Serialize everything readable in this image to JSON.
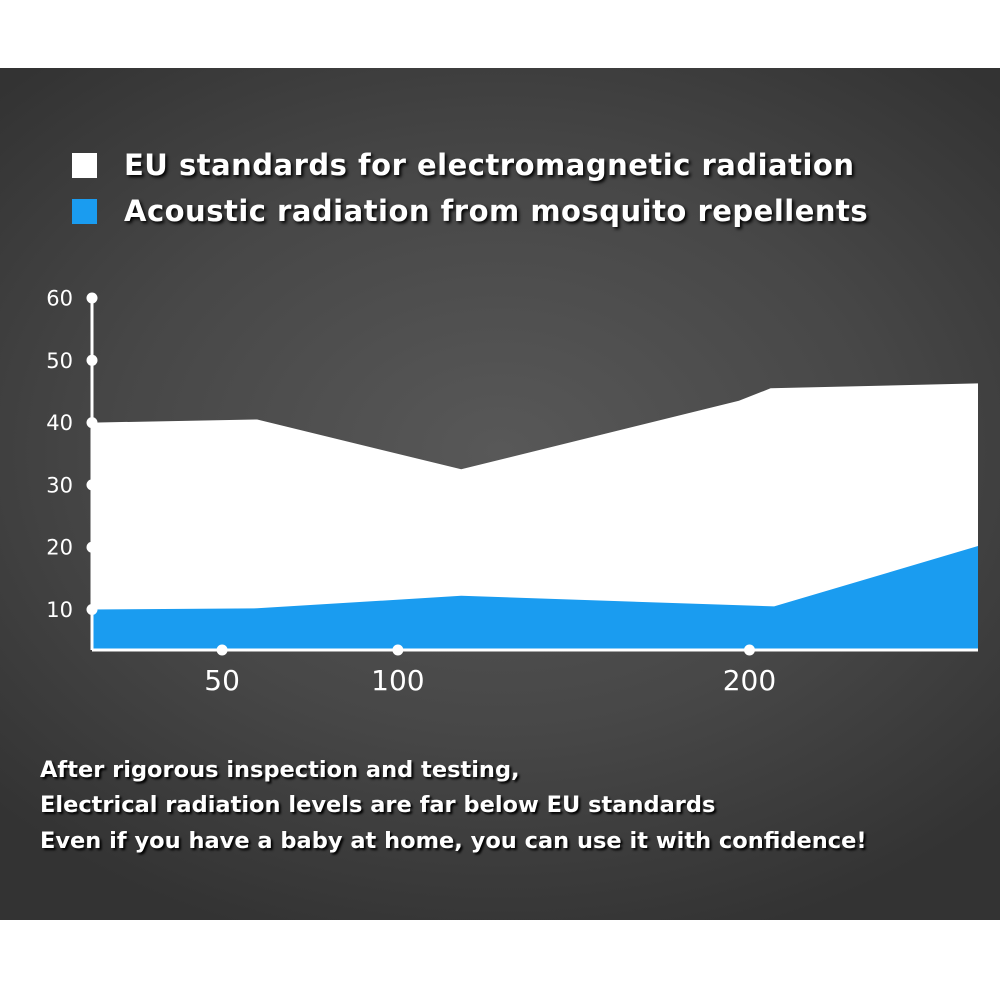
{
  "legend": [
    {
      "label": "EU standards for electromagnetic radiation",
      "color": "#ffffff"
    },
    {
      "label": "Acoustic radiation from mosquito repellents",
      "color": "#1a9cf0"
    }
  ],
  "captions": [
    "After rigorous inspection and testing,",
    "Electrical radiation levels are far below EU standards",
    "Even if you have a baby at home, you can use it with confidence!"
  ],
  "chart_data": {
    "type": "area",
    "title": "",
    "xlabel": "",
    "ylabel": "",
    "x_ticks": [
      50,
      100,
      200
    ],
    "y_ticks": [
      10,
      20,
      30,
      40,
      50,
      60
    ],
    "ylim": [
      3.5,
      60
    ],
    "xlim": [
      13,
      265
    ],
    "grid": false,
    "legend_position": "top-left",
    "series": [
      {
        "name": "EU standards for electromagnetic radiation",
        "color": "#ffffff",
        "x": [
          13,
          60,
          118,
          197,
          206,
          265
        ],
        "values": [
          40,
          40.5,
          32.5,
          43.5,
          45.5,
          46.3
        ]
      },
      {
        "name": "Acoustic radiation from mosquito repellents",
        "color": "#1a9cf0",
        "x": [
          13,
          60,
          118,
          207,
          265
        ],
        "values": [
          10,
          10.2,
          12.2,
          10.5,
          20.2
        ]
      }
    ]
  }
}
